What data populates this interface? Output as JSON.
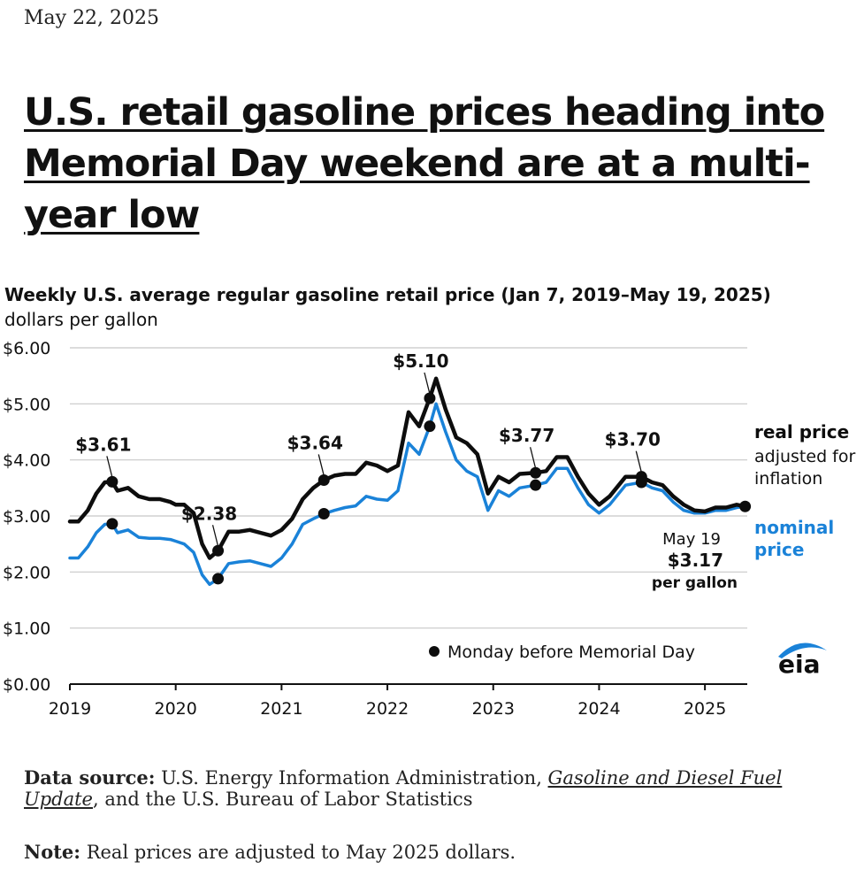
{
  "date": "May 22, 2025",
  "headline": "U.S. retail gasoline prices heading into Memorial Day weekend are at a multi-year low",
  "chart": {
    "title": "Weekly U.S. average regular gasoline retail price (Jan 7, 2019–May 19, 2025)",
    "unit": "dollars per gallon"
  },
  "colors": {
    "real": "#0d0d0d",
    "nominal": "#1a82d8",
    "grid": "#c8c8c8"
  },
  "footer": {
    "source_label": "Data source:",
    "source_pre": " U.S. Energy Information Administration, ",
    "source_link": "Gasoline and Diesel Fuel Update",
    "source_post": ", and the U.S. Bureau of Labor Statistics",
    "note_label": "Note:",
    "note_text": " Real prices are adjusted to May 2025 dollars."
  },
  "logo": "eia",
  "chart_data": {
    "type": "line",
    "ylim": [
      0,
      6
    ],
    "xlim": [
      2019.0,
      2025.4
    ],
    "yticks": [
      "$0.00",
      "$1.00",
      "$2.00",
      "$3.00",
      "$4.00",
      "$5.00",
      "$6.00"
    ],
    "xticks": [
      "2019",
      "2020",
      "2021",
      "2022",
      "2023",
      "2024",
      "2025"
    ],
    "grid": true,
    "legend": "bottom-right",
    "legend_text": "Monday before Memorial Day",
    "end_annotation": {
      "date_label": "May 19",
      "value_label": "$3.17",
      "unit_label": "per gallon"
    },
    "series": [
      {
        "name": "real price",
        "label": "real price",
        "sublabel": "adjusted for inflation",
        "points": [
          [
            2019.0,
            2.9
          ],
          [
            2019.08,
            2.9
          ],
          [
            2019.17,
            3.1
          ],
          [
            2019.25,
            3.4
          ],
          [
            2019.33,
            3.6
          ],
          [
            2019.4,
            3.61
          ],
          [
            2019.45,
            3.45
          ],
          [
            2019.55,
            3.5
          ],
          [
            2019.65,
            3.35
          ],
          [
            2019.75,
            3.3
          ],
          [
            2019.85,
            3.3
          ],
          [
            2019.95,
            3.25
          ],
          [
            2020.0,
            3.2
          ],
          [
            2020.08,
            3.2
          ],
          [
            2020.17,
            3.05
          ],
          [
            2020.25,
            2.5
          ],
          [
            2020.32,
            2.25
          ],
          [
            2020.4,
            2.38
          ],
          [
            2020.5,
            2.72
          ],
          [
            2020.6,
            2.72
          ],
          [
            2020.7,
            2.75
          ],
          [
            2020.8,
            2.7
          ],
          [
            2020.9,
            2.65
          ],
          [
            2021.0,
            2.75
          ],
          [
            2021.1,
            2.95
          ],
          [
            2021.2,
            3.3
          ],
          [
            2021.3,
            3.5
          ],
          [
            2021.4,
            3.64
          ],
          [
            2021.5,
            3.72
          ],
          [
            2021.6,
            3.75
          ],
          [
            2021.7,
            3.75
          ],
          [
            2021.8,
            3.95
          ],
          [
            2021.9,
            3.9
          ],
          [
            2022.0,
            3.8
          ],
          [
            2022.1,
            3.9
          ],
          [
            2022.2,
            4.85
          ],
          [
            2022.3,
            4.6
          ],
          [
            2022.4,
            5.1
          ],
          [
            2022.46,
            5.45
          ],
          [
            2022.55,
            4.9
          ],
          [
            2022.65,
            4.4
          ],
          [
            2022.75,
            4.3
          ],
          [
            2022.85,
            4.1
          ],
          [
            2022.95,
            3.4
          ],
          [
            2023.05,
            3.7
          ],
          [
            2023.15,
            3.6
          ],
          [
            2023.25,
            3.75
          ],
          [
            2023.4,
            3.77
          ],
          [
            2023.5,
            3.8
          ],
          [
            2023.6,
            4.05
          ],
          [
            2023.7,
            4.05
          ],
          [
            2023.8,
            3.7
          ],
          [
            2023.9,
            3.4
          ],
          [
            2024.0,
            3.2
          ],
          [
            2024.1,
            3.35
          ],
          [
            2024.25,
            3.7
          ],
          [
            2024.4,
            3.7
          ],
          [
            2024.5,
            3.6
          ],
          [
            2024.6,
            3.55
          ],
          [
            2024.7,
            3.35
          ],
          [
            2024.8,
            3.2
          ],
          [
            2024.9,
            3.1
          ],
          [
            2025.0,
            3.08
          ],
          [
            2025.1,
            3.15
          ],
          [
            2025.2,
            3.15
          ],
          [
            2025.3,
            3.2
          ],
          [
            2025.38,
            3.17
          ]
        ]
      },
      {
        "name": "nominal price",
        "label": "nominal price",
        "points": [
          [
            2019.0,
            2.25
          ],
          [
            2019.08,
            2.25
          ],
          [
            2019.17,
            2.45
          ],
          [
            2019.25,
            2.7
          ],
          [
            2019.33,
            2.85
          ],
          [
            2019.4,
            2.86
          ],
          [
            2019.45,
            2.7
          ],
          [
            2019.55,
            2.75
          ],
          [
            2019.65,
            2.62
          ],
          [
            2019.75,
            2.6
          ],
          [
            2019.85,
            2.6
          ],
          [
            2019.95,
            2.58
          ],
          [
            2020.0,
            2.55
          ],
          [
            2020.08,
            2.5
          ],
          [
            2020.17,
            2.35
          ],
          [
            2020.25,
            1.95
          ],
          [
            2020.32,
            1.78
          ],
          [
            2020.4,
            1.88
          ],
          [
            2020.5,
            2.15
          ],
          [
            2020.6,
            2.18
          ],
          [
            2020.7,
            2.2
          ],
          [
            2020.8,
            2.15
          ],
          [
            2020.9,
            2.1
          ],
          [
            2021.0,
            2.25
          ],
          [
            2021.1,
            2.5
          ],
          [
            2021.2,
            2.85
          ],
          [
            2021.3,
            2.95
          ],
          [
            2021.4,
            3.04
          ],
          [
            2021.5,
            3.1
          ],
          [
            2021.6,
            3.15
          ],
          [
            2021.7,
            3.18
          ],
          [
            2021.8,
            3.35
          ],
          [
            2021.9,
            3.3
          ],
          [
            2022.0,
            3.28
          ],
          [
            2022.1,
            3.45
          ],
          [
            2022.2,
            4.3
          ],
          [
            2022.3,
            4.1
          ],
          [
            2022.4,
            4.6
          ],
          [
            2022.46,
            5.0
          ],
          [
            2022.55,
            4.5
          ],
          [
            2022.65,
            4.0
          ],
          [
            2022.75,
            3.8
          ],
          [
            2022.85,
            3.7
          ],
          [
            2022.95,
            3.1
          ],
          [
            2023.05,
            3.45
          ],
          [
            2023.15,
            3.35
          ],
          [
            2023.25,
            3.5
          ],
          [
            2023.4,
            3.55
          ],
          [
            2023.5,
            3.6
          ],
          [
            2023.6,
            3.85
          ],
          [
            2023.7,
            3.85
          ],
          [
            2023.8,
            3.5
          ],
          [
            2023.9,
            3.2
          ],
          [
            2024.0,
            3.05
          ],
          [
            2024.1,
            3.2
          ],
          [
            2024.25,
            3.55
          ],
          [
            2024.4,
            3.6
          ],
          [
            2024.5,
            3.5
          ],
          [
            2024.6,
            3.45
          ],
          [
            2024.7,
            3.25
          ],
          [
            2024.8,
            3.1
          ],
          [
            2024.9,
            3.05
          ],
          [
            2025.0,
            3.05
          ],
          [
            2025.1,
            3.1
          ],
          [
            2025.2,
            3.1
          ],
          [
            2025.3,
            3.15
          ],
          [
            2025.38,
            3.17
          ]
        ]
      }
    ],
    "memorial_day_points": {
      "real": [
        [
          2019.4,
          3.61
        ],
        [
          2020.4,
          2.38
        ],
        [
          2021.4,
          3.64
        ],
        [
          2022.4,
          5.1
        ],
        [
          2023.4,
          3.77
        ],
        [
          2024.4,
          3.7
        ],
        [
          2025.38,
          3.17
        ]
      ],
      "nominal": [
        [
          2019.4,
          2.86
        ],
        [
          2020.4,
          1.88
        ],
        [
          2021.4,
          3.04
        ],
        [
          2022.4,
          4.6
        ],
        [
          2023.4,
          3.55
        ],
        [
          2024.4,
          3.6
        ]
      ]
    },
    "annotations": [
      {
        "text": "$3.61",
        "x": 2019.4,
        "y": 3.61
      },
      {
        "text": "$2.38",
        "x": 2020.4,
        "y": 2.38
      },
      {
        "text": "$3.64",
        "x": 2021.4,
        "y": 3.64
      },
      {
        "text": "$5.10",
        "x": 2022.4,
        "y": 5.1
      },
      {
        "text": "$3.77",
        "x": 2023.4,
        "y": 3.77
      },
      {
        "text": "$3.70",
        "x": 2024.4,
        "y": 3.7
      }
    ]
  }
}
